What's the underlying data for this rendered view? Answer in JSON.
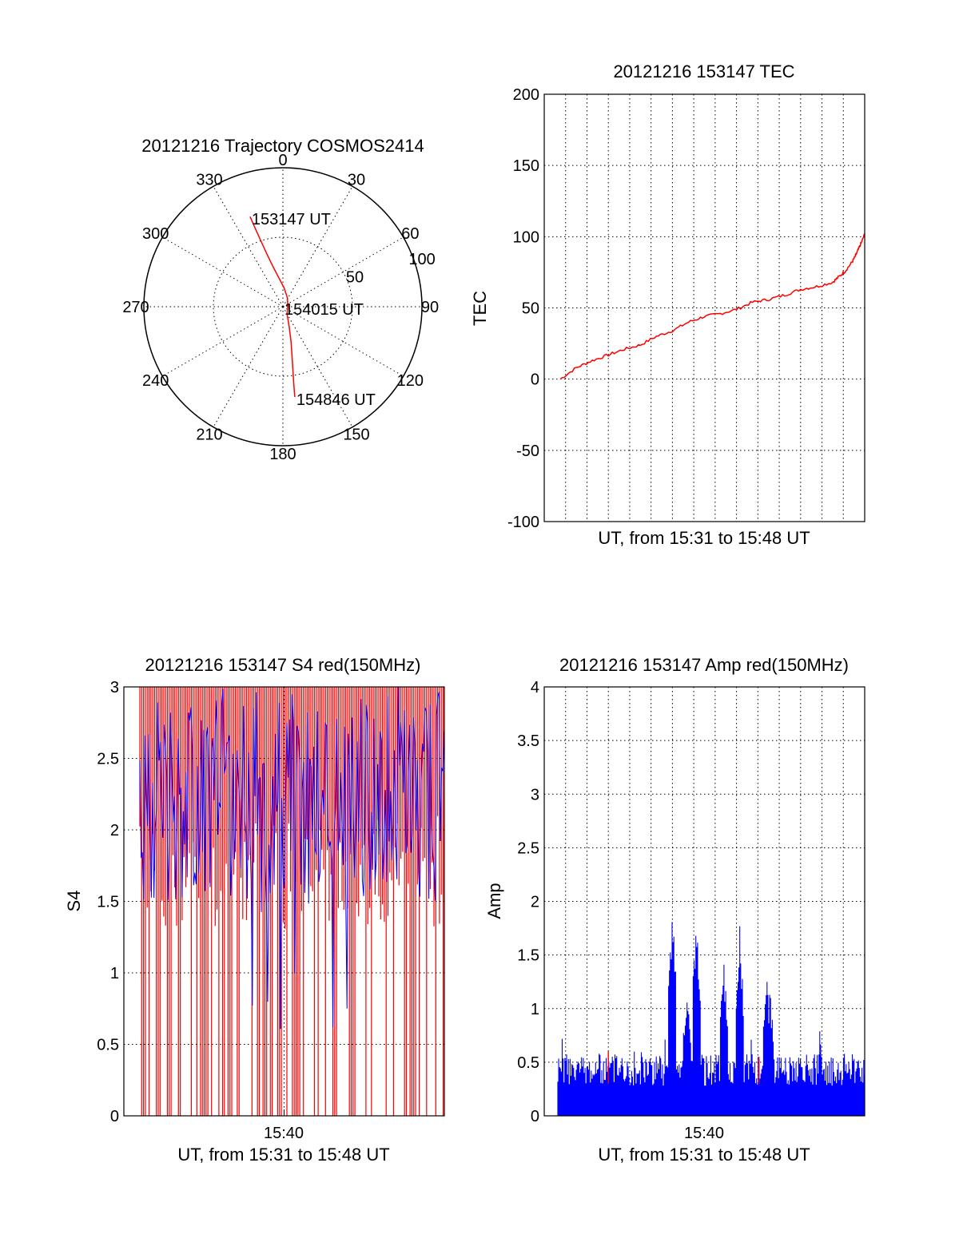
{
  "chart_data": [
    {
      "type": "polar",
      "title": "20121216 Trajectory COSMOS2414",
      "azimuth_labels": [
        "0",
        "30",
        "60",
        "90",
        "120",
        "150",
        "180",
        "210",
        "240",
        "270",
        "300",
        "330"
      ],
      "azimuth_values": [
        0,
        30,
        60,
        90,
        120,
        150,
        180,
        210,
        240,
        270,
        300,
        330
      ],
      "radial_labels": [
        "50",
        "100"
      ],
      "radial_values": [
        50,
        100
      ],
      "rlim": [
        0,
        100
      ],
      "trajectory": {
        "color": "#ff0000",
        "points": [
          {
            "az": 340.0,
            "r": 69.0
          },
          {
            "az": 340.5,
            "r": 60.0
          },
          {
            "az": 341.5,
            "r": 50.0
          },
          {
            "az": 343.0,
            "r": 40.0
          },
          {
            "az": 346.0,
            "r": 30.0
          },
          {
            "az": 352.0,
            "r": 21.0
          },
          {
            "az": 4.0,
            "r": 13.5
          },
          {
            "az": 28.0,
            "r": 7.0
          },
          {
            "az": 90.0,
            "r": 3.5
          },
          {
            "az": 150.0,
            "r": 6.0
          },
          {
            "az": 163.0,
            "r": 16.0
          },
          {
            "az": 167.0,
            "r": 26.0
          },
          {
            "az": 169.5,
            "r": 36.0
          },
          {
            "az": 171.0,
            "r": 46.0
          },
          {
            "az": 172.0,
            "r": 56.0
          },
          {
            "az": 172.5,
            "r": 65.5
          }
        ]
      },
      "annotations": [
        {
          "text": "153147 UT",
          "az": 340.0,
          "r": 69.0
        },
        {
          "text": "154015 UT",
          "az": 0.0,
          "r": 0.0
        },
        {
          "text": "154846 UT",
          "az": 172.5,
          "r": 65.5
        }
      ]
    },
    {
      "type": "line",
      "title": "20121216 153147 TEC",
      "xlabel": "UT, from 15:31 to 15:48 UT",
      "ylabel": "TEC",
      "ylim": [
        -100,
        200
      ],
      "yticks": [
        "200",
        "150",
        "100",
        "50",
        "0",
        "-50",
        "-100"
      ],
      "ytick_values": [
        200,
        150,
        100,
        50,
        0,
        -50,
        -100
      ],
      "xlim": [
        0,
        1
      ],
      "xgrid_count": 15,
      "grid": true,
      "series": [
        {
          "color": "#ff0000",
          "x": [
            0.05,
            0.1,
            0.15,
            0.2,
            0.25,
            0.3,
            0.35,
            0.4,
            0.45,
            0.5,
            0.55,
            0.6,
            0.65,
            0.7,
            0.75,
            0.8,
            0.85,
            0.9,
            0.92,
            0.94,
            0.96,
            0.97,
            0.98,
            0.99,
            1.0
          ],
          "y": [
            0,
            8,
            13,
            17,
            21,
            24,
            30,
            34,
            40,
            44,
            46,
            49,
            54,
            56,
            59,
            63,
            65,
            68,
            72,
            76,
            82,
            86,
            91,
            96,
            102
          ]
        }
      ]
    },
    {
      "type": "bar",
      "title": "20121216 153147 S4 red(150MHz)",
      "xlabel": "UT, from 15:31 to 15:48 UT",
      "ylabel": "S4",
      "ylim": [
        0,
        3
      ],
      "yticks": [
        "3",
        "2.5",
        "2",
        "1.5",
        "1",
        "0.5",
        "0"
      ],
      "ytick_values": [
        3,
        2.5,
        2,
        1.5,
        1,
        0.5,
        0
      ],
      "xtick_labels": [
        "15:40"
      ],
      "xtick_positions": [
        0.5
      ],
      "xlim": [
        0,
        1
      ],
      "grid": true,
      "series": [
        {
          "color": "#ff0000",
          "values_note": "dense vertical traces"
        },
        {
          "color": "#0000ff",
          "values_note": "dense vertical traces"
        }
      ]
    },
    {
      "type": "bar",
      "title": "20121216 153147 Amp red(150MHz)",
      "xlabel": "UT, from 15:31 to 15:48 UT",
      "ylabel": "Amp",
      "ylim": [
        0,
        4
      ],
      "yticks": [
        "4",
        "3.5",
        "3",
        "2.5",
        "2",
        "1.5",
        "1",
        "0.5",
        "0"
      ],
      "ytick_values": [
        4,
        3.5,
        3,
        2.5,
        2,
        1.5,
        1,
        0.5,
        0
      ],
      "xtick_labels": [
        "15:40"
      ],
      "xtick_positions": [
        0.5
      ],
      "xlim": [
        0,
        1
      ],
      "grid": true,
      "series": [
        {
          "color": "#0000ff",
          "peaks": [
            {
              "x": 0.4,
              "y": 2.1
            },
            {
              "x": 0.445,
              "y": 1.3
            },
            {
              "x": 0.475,
              "y": 2.08
            },
            {
              "x": 0.56,
              "y": 1.5
            },
            {
              "x": 0.61,
              "y": 1.9
            },
            {
              "x": 0.695,
              "y": 1.42
            },
            {
              "x": 0.705,
              "y": 1.2
            }
          ]
        },
        {
          "color": "#ff0000",
          "peaks": [
            {
              "x": 0.2,
              "y": 0.6
            },
            {
              "x": 0.67,
              "y": 0.55
            }
          ]
        }
      ]
    }
  ]
}
